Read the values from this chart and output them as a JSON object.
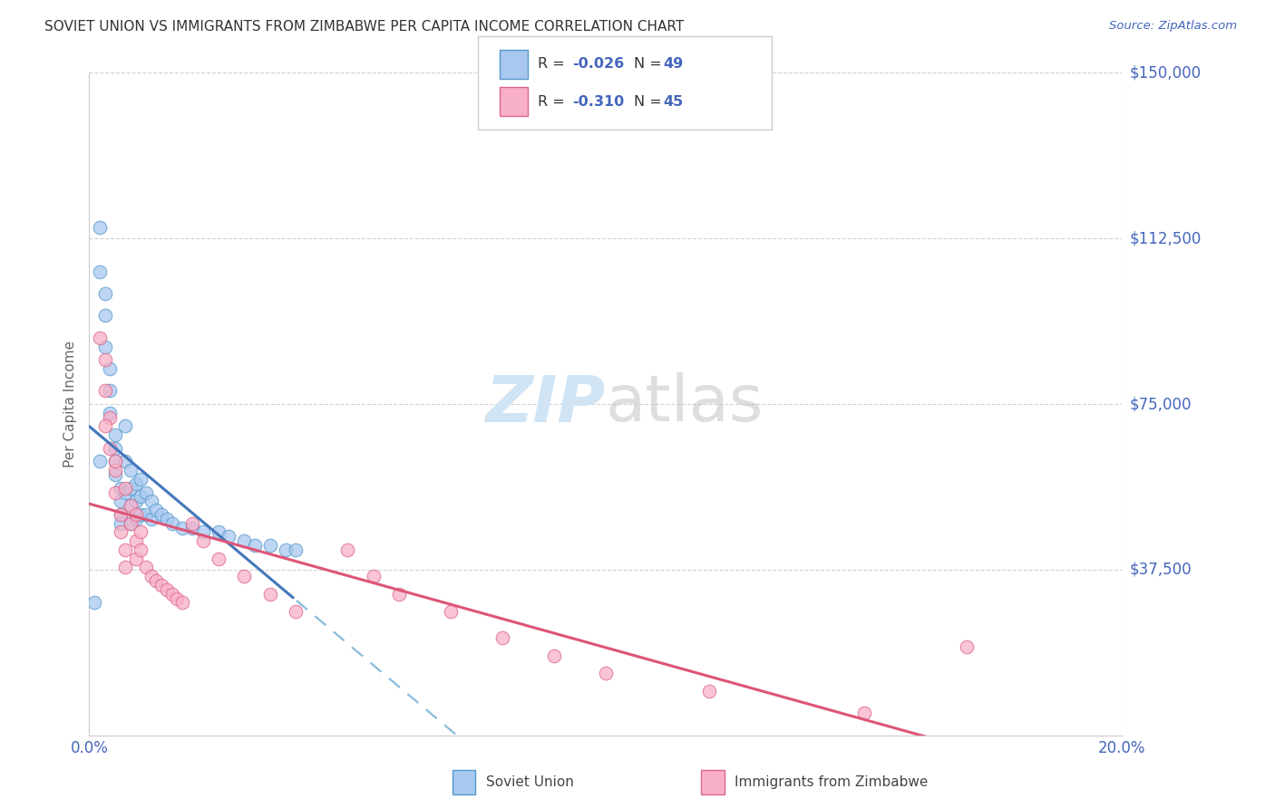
{
  "title": "SOVIET UNION VS IMMIGRANTS FROM ZIMBABWE PER CAPITA INCOME CORRELATION CHART",
  "source": "Source: ZipAtlas.com",
  "ylabel_label": "Per Capita Income",
  "xmin": 0.0,
  "xmax": 0.2,
  "ymin": 0,
  "ymax": 150000,
  "ytick_vals": [
    0,
    37500,
    75000,
    112500,
    150000
  ],
  "ytick_labels": [
    "",
    "$37,500",
    "$75,000",
    "$112,500",
    "$150,000"
  ],
  "blue_scatter_color": "#a8c8f0",
  "blue_edge_color": "#5599cc",
  "blue_line_color": "#4477bb",
  "blue_dash_color": "#88bbdd",
  "pink_scatter_color": "#f8b0c8",
  "pink_edge_color": "#dd6688",
  "pink_line_color": "#dd5577",
  "text_color": "#4466bb",
  "title_color": "#333333",
  "label_color": "#666666",
  "grid_color": "#cccccc",
  "background_color": "#ffffff",
  "watermark_color": "#d0e4f4",
  "soviet_x": [
    0.001,
    0.002,
    0.002,
    0.003,
    0.003,
    0.003,
    0.004,
    0.004,
    0.004,
    0.005,
    0.005,
    0.005,
    0.005,
    0.006,
    0.006,
    0.006,
    0.006,
    0.007,
    0.007,
    0.007,
    0.008,
    0.008,
    0.008,
    0.008,
    0.009,
    0.009,
    0.009,
    0.01,
    0.01,
    0.01,
    0.011,
    0.011,
    0.012,
    0.012,
    0.013,
    0.014,
    0.015,
    0.016,
    0.018,
    0.02,
    0.022,
    0.025,
    0.027,
    0.03,
    0.032,
    0.035,
    0.038,
    0.04,
    0.002
  ],
  "soviet_y": [
    30000,
    115000,
    105000,
    100000,
    95000,
    88000,
    83000,
    78000,
    73000,
    68000,
    65000,
    62000,
    59000,
    56000,
    53000,
    50000,
    48000,
    70000,
    62000,
    55000,
    60000,
    56000,
    52000,
    48000,
    57000,
    53000,
    49000,
    58000,
    54000,
    50000,
    55000,
    50000,
    53000,
    49000,
    51000,
    50000,
    49000,
    48000,
    47000,
    47000,
    46000,
    46000,
    45000,
    44000,
    43000,
    43000,
    42000,
    42000,
    62000
  ],
  "zimbabwe_x": [
    0.002,
    0.003,
    0.003,
    0.004,
    0.004,
    0.005,
    0.005,
    0.006,
    0.006,
    0.007,
    0.007,
    0.008,
    0.008,
    0.009,
    0.009,
    0.01,
    0.01,
    0.011,
    0.012,
    0.013,
    0.014,
    0.015,
    0.016,
    0.017,
    0.018,
    0.02,
    0.022,
    0.025,
    0.03,
    0.035,
    0.04,
    0.05,
    0.055,
    0.06,
    0.07,
    0.08,
    0.09,
    0.1,
    0.12,
    0.15,
    0.003,
    0.005,
    0.007,
    0.009,
    0.17
  ],
  "zimbabwe_y": [
    90000,
    85000,
    78000,
    72000,
    65000,
    60000,
    55000,
    50000,
    46000,
    42000,
    38000,
    52000,
    48000,
    44000,
    40000,
    46000,
    42000,
    38000,
    36000,
    35000,
    34000,
    33000,
    32000,
    31000,
    30000,
    48000,
    44000,
    40000,
    36000,
    32000,
    28000,
    42000,
    36000,
    32000,
    28000,
    22000,
    18000,
    14000,
    10000,
    5000,
    70000,
    62000,
    56000,
    50000,
    20000
  ],
  "R_soviet": "-0.026",
  "N_soviet": "49",
  "R_zimbabwe": "-0.310",
  "N_zimbabwe": "45"
}
